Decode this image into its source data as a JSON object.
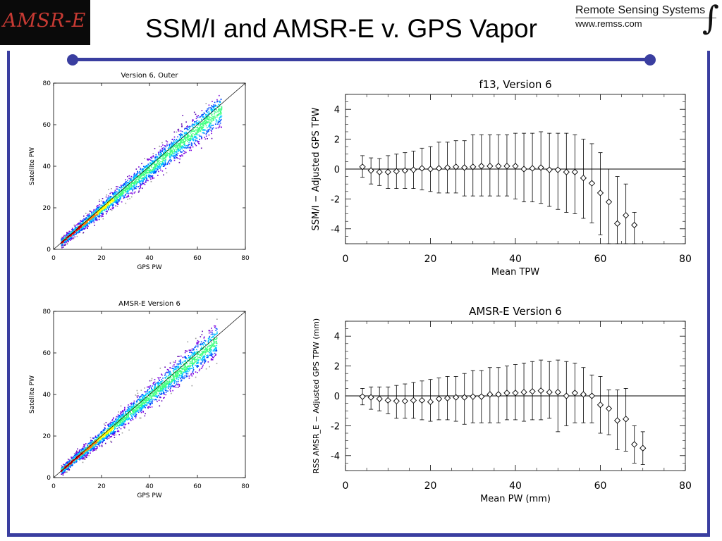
{
  "header": {
    "logo_text": "AMSR-E",
    "title": "SSM/I and AMSR-E v. GPS Vapor",
    "org_name": "Remote Sensing Systems",
    "org_url": "www.remss.com",
    "accent_color": "#3a3ea0"
  },
  "chart_data": [
    {
      "type": "scatter",
      "title": "Version 6, Outer",
      "xlabel": "GPS PW",
      "ylabel": "Satellite PW",
      "xlim": [
        0,
        80
      ],
      "ylim": [
        0,
        80
      ],
      "xticks": [
        0,
        20,
        40,
        60,
        80
      ],
      "yticks": [
        0,
        20,
        40,
        60,
        80
      ],
      "reference_line": "1:1",
      "density_colormap": [
        "#5a00b0",
        "#7a00e0",
        "#0050ff",
        "#00c8ff",
        "#40ff80",
        "#ffff00",
        "#ff8000",
        "#ff0000"
      ],
      "point_range": {
        "x_min": 3,
        "x_max": 70
      },
      "slope": 0.96
    },
    {
      "type": "line",
      "title": "f13, Version 6",
      "xlabel": "Mean TPW",
      "ylabel": "SSM/I − Adjusted GPS TPW",
      "xlim": [
        0,
        80
      ],
      "ylim": [
        -5,
        5
      ],
      "xticks": [
        0,
        20,
        40,
        60,
        80
      ],
      "yticks": [
        -4,
        -2,
        0,
        2,
        4
      ],
      "zero_line": true,
      "marker": "diamond",
      "x": [
        4,
        6,
        8,
        10,
        12,
        14,
        16,
        18,
        20,
        22,
        24,
        26,
        28,
        30,
        32,
        34,
        36,
        38,
        40,
        42,
        44,
        46,
        48,
        50,
        52,
        54,
        56,
        58,
        60,
        62,
        64,
        66,
        68
      ],
      "mean": [
        0.15,
        -0.1,
        -0.2,
        -0.2,
        -0.15,
        -0.1,
        -0.05,
        0.05,
        0.0,
        0.05,
        0.1,
        0.15,
        0.1,
        0.15,
        0.2,
        0.2,
        0.2,
        0.2,
        0.2,
        0.0,
        0.05,
        0.1,
        -0.05,
        -0.05,
        -0.2,
        -0.2,
        -0.6,
        -0.95,
        -1.6,
        -2.2,
        -3.65,
        -3.1,
        -3.75
      ],
      "err_low": [
        -0.55,
        -1.0,
        -1.1,
        -1.3,
        -1.3,
        -1.3,
        -1.3,
        -1.4,
        -1.5,
        -1.6,
        -1.6,
        -1.6,
        -1.8,
        -1.8,
        -1.8,
        -1.8,
        -1.8,
        -1.8,
        -2.0,
        -2.2,
        -2.2,
        -2.3,
        -2.5,
        -2.7,
        -2.9,
        -3.0,
        -3.3,
        -3.6,
        -4.4,
        -5.0,
        -5.0,
        -5.0,
        -5.0
      ],
      "err_high": [
        0.9,
        0.75,
        0.7,
        0.9,
        1.0,
        1.1,
        1.2,
        1.4,
        1.5,
        1.8,
        1.8,
        1.9,
        1.9,
        2.3,
        2.3,
        2.3,
        2.3,
        2.3,
        2.4,
        2.4,
        2.4,
        2.5,
        2.4,
        2.4,
        2.4,
        2.3,
        2.0,
        1.7,
        1.1,
        0.0,
        -0.5,
        -1.0,
        -2.9
      ]
    },
    {
      "type": "scatter",
      "title": "AMSR-E Version 6",
      "xlabel": "GPS PW",
      "ylabel": "Satellite PW",
      "xlim": [
        0,
        80
      ],
      "ylim": [
        0,
        80
      ],
      "xticks": [
        0,
        20,
        40,
        60,
        80
      ],
      "yticks": [
        0,
        20,
        40,
        60,
        80
      ],
      "reference_line": "1:1",
      "density_colormap": [
        "#5a00b0",
        "#7a00e0",
        "#0050ff",
        "#00c8ff",
        "#40ff80",
        "#ffff00",
        "#ff8000",
        "#ff0000"
      ],
      "point_range": {
        "x_min": 3,
        "x_max": 68
      },
      "slope": 0.97
    },
    {
      "type": "line",
      "title": "AMSR-E Version 6",
      "xlabel": "Mean PW (mm)",
      "ylabel": "RSS AMSR_E − Adjusted GPS TPW (mm)",
      "xlim": [
        0,
        80
      ],
      "ylim": [
        -5,
        5
      ],
      "xticks": [
        0,
        20,
        40,
        60,
        80
      ],
      "yticks": [
        -4,
        -2,
        0,
        2,
        4
      ],
      "zero_line": true,
      "marker": "diamond",
      "x": [
        4,
        6,
        8,
        10,
        12,
        14,
        16,
        18,
        20,
        22,
        24,
        26,
        28,
        30,
        32,
        34,
        36,
        38,
        40,
        42,
        44,
        46,
        48,
        50,
        52,
        54,
        56,
        58,
        60,
        62,
        64,
        66,
        68,
        70
      ],
      "mean": [
        -0.05,
        -0.1,
        -0.2,
        -0.3,
        -0.35,
        -0.35,
        -0.3,
        -0.3,
        -0.4,
        -0.2,
        -0.15,
        -0.1,
        -0.1,
        -0.05,
        -0.05,
        0.1,
        0.1,
        0.2,
        0.2,
        0.25,
        0.3,
        0.35,
        0.25,
        0.25,
        0.0,
        0.2,
        0.1,
        0.0,
        -0.6,
        -0.85,
        -1.65,
        -1.55,
        -3.25,
        -3.5
      ],
      "err_low": [
        -0.6,
        -0.9,
        -1.0,
        -1.2,
        -1.5,
        -1.5,
        -1.5,
        -1.6,
        -1.7,
        -1.6,
        -1.6,
        -1.7,
        -1.9,
        -1.8,
        -1.8,
        -1.8,
        -1.8,
        -1.6,
        -1.6,
        -1.7,
        -1.6,
        -1.6,
        -1.5,
        -2.4,
        -2.0,
        -1.8,
        -1.8,
        -1.8,
        -2.5,
        -2.6,
        -3.6,
        -3.7,
        -4.5,
        -4.6
      ],
      "err_high": [
        0.5,
        0.6,
        0.6,
        0.6,
        0.7,
        0.8,
        0.9,
        1.0,
        1.1,
        1.2,
        1.3,
        1.3,
        1.5,
        1.7,
        1.7,
        1.9,
        1.9,
        2.0,
        2.1,
        2.2,
        2.3,
        2.4,
        2.3,
        2.4,
        2.3,
        2.2,
        1.9,
        1.4,
        1.3,
        0.4,
        0.4,
        0.5,
        -2.0,
        -2.4
      ]
    }
  ]
}
